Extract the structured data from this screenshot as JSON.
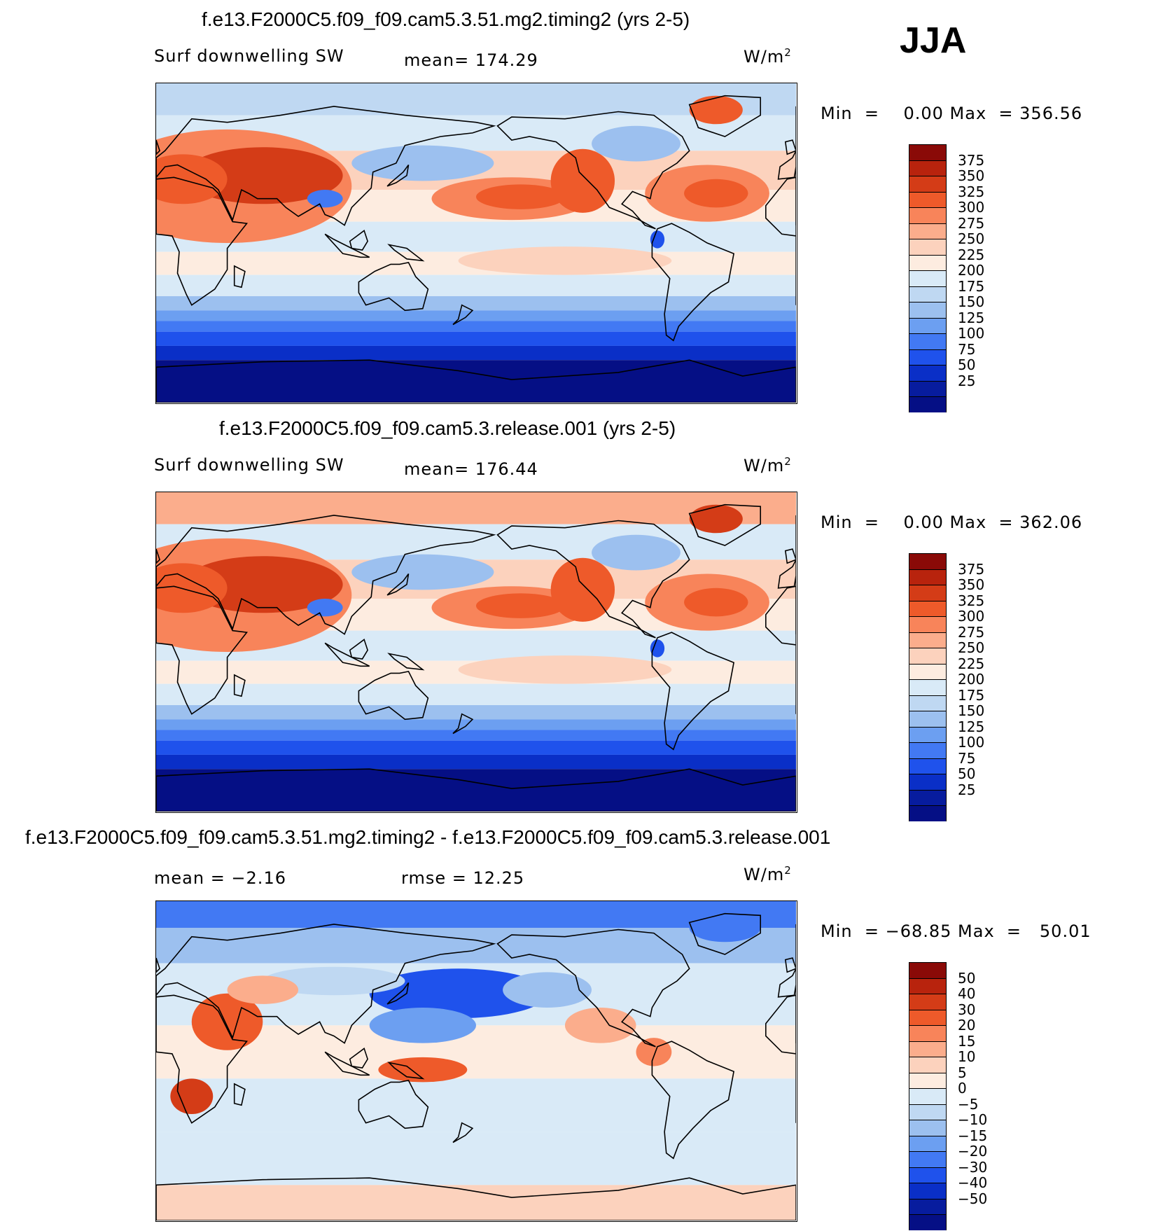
{
  "season": "JJA",
  "chart_data": [
    {
      "type": "heatmap",
      "title": "f.e13.F2000C5.f09_f09.cam5.3.51.mg2.timing2 (yrs 2-5)",
      "variable": "Surf downwelling SW",
      "stat1": "mean=  174.29",
      "units": "W/m",
      "units_sup": "2",
      "minmax": "Min  =    0.00 Max  = 356.56",
      "min": 0.0,
      "max": 356.56,
      "colorbar_levels": [
        "375",
        "350",
        "325",
        "300",
        "275",
        "250",
        "225",
        "200",
        "175",
        "150",
        "125",
        "100",
        "75",
        "50",
        "25"
      ],
      "colorbar_colors": [
        "#8a0a07",
        "#b8230d",
        "#d43c17",
        "#ee5a2a",
        "#f8845a",
        "#fbad8c",
        "#fcd2bd",
        "#fdece0",
        "#d9eaf7",
        "#bfd8f2",
        "#9cc0ef",
        "#6c9ff1",
        "#4279f3",
        "#1f52ec",
        "#0a2fc7",
        "#071c9e",
        "#050f85"
      ],
      "palette": "diverging"
    },
    {
      "type": "heatmap",
      "title": "f.e13.F2000C5.f09_f09.cam5.3.release.001 (yrs 2-5)",
      "variable": "Surf downwelling SW",
      "stat1": "mean=  176.44",
      "units": "W/m",
      "units_sup": "2",
      "minmax": "Min  =    0.00 Max  = 362.06",
      "min": 0.0,
      "max": 362.06,
      "colorbar_levels": [
        "375",
        "350",
        "325",
        "300",
        "275",
        "250",
        "225",
        "200",
        "175",
        "150",
        "125",
        "100",
        "75",
        "50",
        "25"
      ],
      "colorbar_colors": [
        "#8a0a07",
        "#b8230d",
        "#d43c17",
        "#ee5a2a",
        "#f8845a",
        "#fbad8c",
        "#fcd2bd",
        "#fdece0",
        "#d9eaf7",
        "#bfd8f2",
        "#9cc0ef",
        "#6c9ff1",
        "#4279f3",
        "#1f52ec",
        "#0a2fc7",
        "#071c9e",
        "#050f85"
      ],
      "palette": "diverging"
    },
    {
      "type": "heatmap",
      "title": "f.e13.F2000C5.f09_f09.cam5.3.51.mg2.timing2 - f.e13.F2000C5.f09_f09.cam5.3.release.001",
      "stat1": "mean =   −2.16",
      "stat2": "rmse =   12.25",
      "units": "W/m",
      "units_sup": "2",
      "minmax": "Min  = −68.85 Max  =   50.01",
      "min": -68.85,
      "max": 50.01,
      "colorbar_levels": [
        "50",
        "40",
        "30",
        "20",
        "15",
        "10",
        "5",
        "0",
        "−5",
        "−10",
        "−15",
        "−20",
        "−30",
        "−40",
        "−50"
      ],
      "colorbar_colors": [
        "#8a0a07",
        "#b8230d",
        "#d43c17",
        "#ee5a2a",
        "#f8845a",
        "#fbad8c",
        "#fcd2bd",
        "#fdece0",
        "#d9eaf7",
        "#bfd8f2",
        "#9cc0ef",
        "#6c9ff1",
        "#4279f3",
        "#1f52ec",
        "#0a2fc7",
        "#071c9e",
        "#050f85"
      ],
      "palette": "diverging"
    }
  ]
}
